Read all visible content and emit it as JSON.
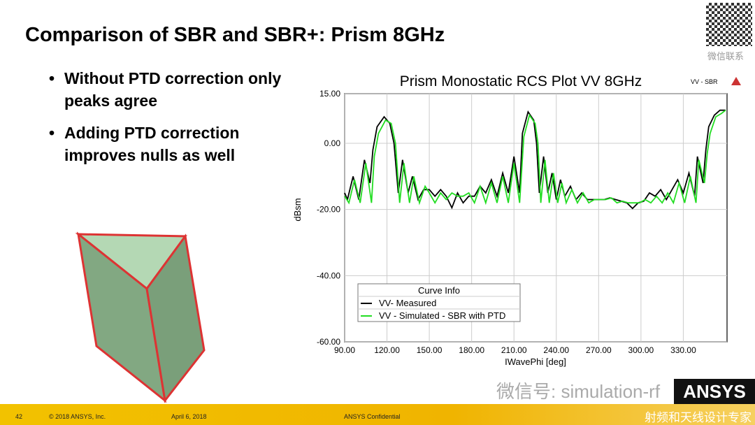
{
  "slide": {
    "title": "Comparison of SBR and SBR+: Prism 8GHz",
    "bullets": [
      "Without PTD correction only peaks agree",
      "Adding PTD correction improves nulls as well"
    ]
  },
  "footer": {
    "page": "42",
    "copyright": "© 2018 ANSYS, Inc.",
    "date": "April 6, 2018",
    "confidential": "ANSYS Confidential"
  },
  "watermark": {
    "qr_label": "微信联系",
    "wechat": "微信号: simulation-rf",
    "logo": "ANSYS",
    "tagline": "射频和天线设计专家"
  },
  "chart_data": {
    "type": "line",
    "title": "Prism Monostatic RCS Plot VV 8GHz",
    "corner_label": "VV - SBR",
    "xlabel": "IWavePhi [deg]",
    "ylabel": "dBsm",
    "xlim": [
      90,
      361
    ],
    "ylim": [
      -60,
      15
    ],
    "xticks": [
      "90.00",
      "120.00",
      "150.00",
      "180.00",
      "210.00",
      "240.00",
      "270.00",
      "300.00",
      "330.00"
    ],
    "yticks": [
      "15.00",
      "0.00",
      "-20.00",
      "-40.00",
      "-60.00"
    ],
    "legend": {
      "title": "Curve Info",
      "placement": "bottom-left"
    },
    "series": [
      {
        "name": "VV- Measured",
        "color": "#000000",
        "x": [
          90,
          92,
          96,
          100,
          104,
          108,
          110,
          113,
          118,
          122,
          125,
          128,
          131,
          135,
          138,
          142,
          146,
          150,
          154,
          158,
          162,
          166,
          170,
          174,
          178,
          182,
          186,
          190,
          194,
          198,
          202,
          206,
          210,
          214,
          216,
          220,
          224,
          226,
          228,
          231,
          234,
          237,
          240,
          243,
          246,
          250,
          254,
          258,
          262,
          266,
          270,
          274,
          278,
          282,
          286,
          290,
          294,
          298,
          302,
          306,
          310,
          314,
          318,
          322,
          326,
          330,
          334,
          338,
          340,
          344,
          346,
          348,
          352,
          356,
          360
        ],
        "y": [
          -15,
          -17,
          -10,
          -17,
          -5,
          -12,
          -2,
          5,
          8,
          6,
          0,
          -15,
          -5,
          -15,
          -10,
          -17,
          -14,
          -14,
          -16,
          -14,
          -16,
          -19.5,
          -15,
          -18,
          -16,
          -16,
          -13,
          -15,
          -11,
          -16,
          -9,
          -15,
          -4,
          -15,
          3,
          9.5,
          7,
          0,
          -15,
          -4,
          -15,
          -9,
          -17,
          -11,
          -16,
          -13,
          -17,
          -15,
          -17,
          -17,
          -17,
          -17,
          -16.5,
          -17,
          -17.5,
          -18,
          -19.7,
          -18,
          -17.5,
          -15,
          -16,
          -14,
          -17,
          -14,
          -11,
          -15,
          -9,
          -16,
          -4,
          -12,
          -2,
          5,
          8.5,
          10,
          10
        ]
      },
      {
        "name": "VV - Simulated - SBR with PTD",
        "color": "#22dd22",
        "x": [
          90,
          93,
          97,
          101,
          105,
          109,
          111,
          114,
          119,
          123,
          126,
          129,
          132,
          136,
          139,
          143,
          147,
          150,
          154,
          158,
          162,
          166,
          170,
          174,
          178,
          182,
          186,
          190,
          194,
          198,
          202,
          206,
          210,
          214,
          217,
          221,
          225,
          227,
          229,
          232,
          235,
          238,
          241,
          244,
          247,
          251,
          255,
          259,
          263,
          267,
          271,
          275,
          279,
          283,
          287,
          291,
          295,
          299,
          303,
          307,
          311,
          315,
          319,
          323,
          327,
          331,
          335,
          339,
          341,
          345,
          347,
          349,
          353,
          357,
          360
        ],
        "y": [
          -16,
          -18,
          -11,
          -18,
          -6,
          -18,
          -4,
          3,
          7,
          6,
          0,
          -18,
          -6,
          -18,
          -10,
          -18,
          -13,
          -15,
          -18,
          -15,
          -17,
          -15,
          -16,
          -16,
          -15,
          -18,
          -13,
          -18,
          -12,
          -18,
          -10,
          -18,
          -6,
          -18,
          2,
          8.5,
          6,
          0,
          -18,
          -5,
          -18,
          -9,
          -18,
          -12,
          -18,
          -14,
          -18,
          -15,
          -18,
          -17,
          -17,
          -17,
          -16.5,
          -18,
          -17.5,
          -18,
          -18,
          -18,
          -17,
          -18,
          -16,
          -18,
          -15,
          -18,
          -12,
          -18,
          -10,
          -18,
          -5,
          -12,
          -3,
          3,
          8,
          9,
          10
        ]
      }
    ]
  }
}
